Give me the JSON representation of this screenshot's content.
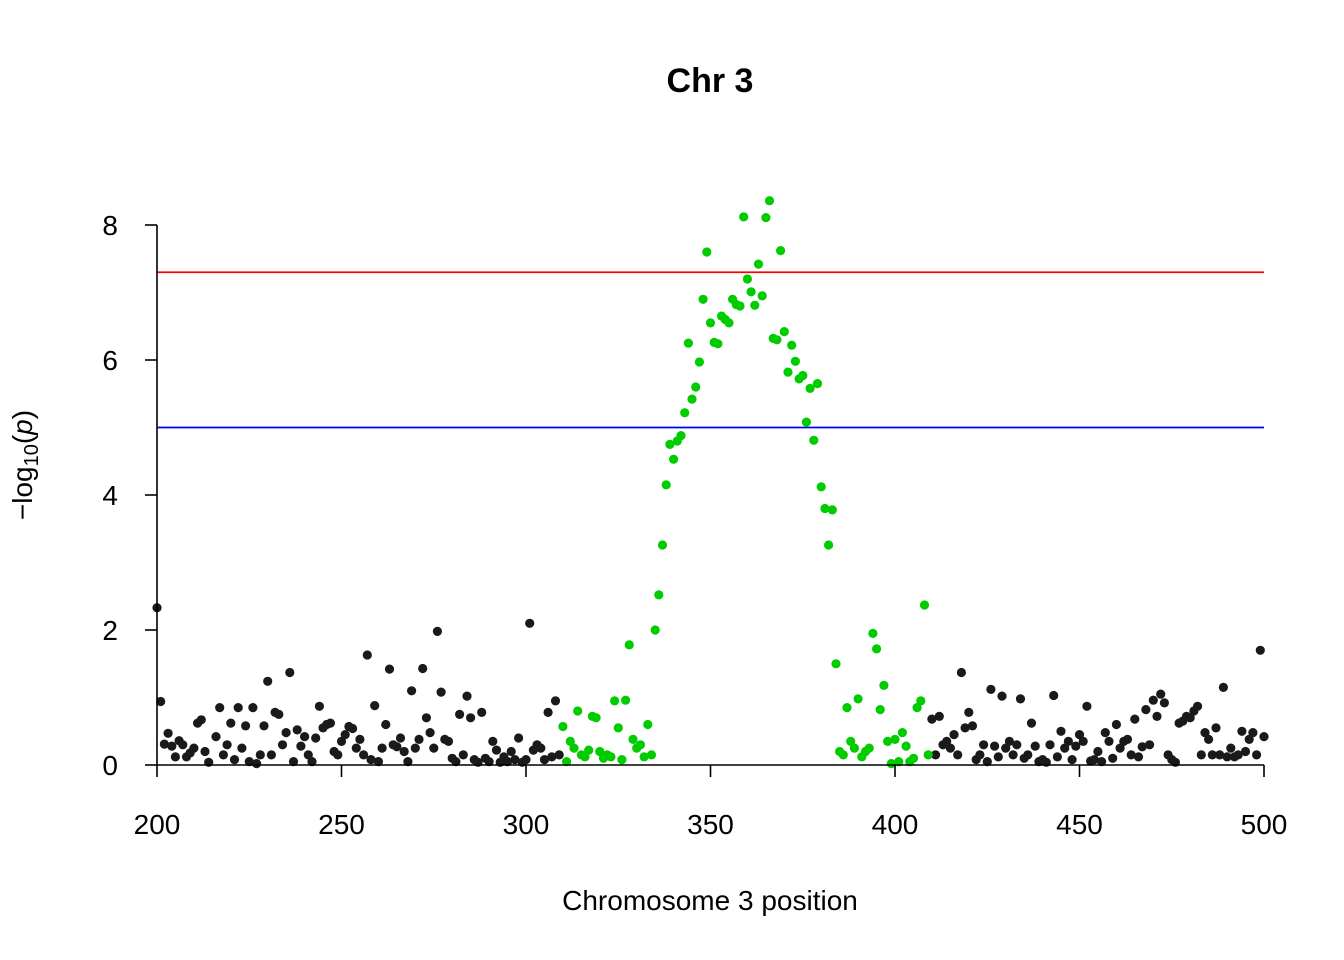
{
  "chart_data": {
    "type": "scatter",
    "title": "Chr 3",
    "xlabel": "Chromosome 3 position",
    "ylabel": {
      "prefix": "−log",
      "subscript": "10",
      "open": "(",
      "variable": "p",
      "close": ")"
    },
    "xlim": [
      200,
      500
    ],
    "ylim": [
      0,
      8.5
    ],
    "xticks": [
      200,
      250,
      300,
      350,
      400,
      450,
      500
    ],
    "yticks": [
      0,
      2,
      4,
      6,
      8
    ],
    "grid": false,
    "legend": "none",
    "colors": {
      "background_points": "#1a1a1a",
      "highlight_points": "#00cc00",
      "genome_wide_line": "#ff0000",
      "suggestive_line": "#0000ff"
    },
    "hlines": [
      {
        "y": 7.3,
        "color": "#ff0000"
      },
      {
        "y": 5.0,
        "color": "#0000ff"
      }
    ],
    "series": [
      {
        "color": "#1a1a1a",
        "points": [
          [
            200,
            2.33
          ],
          [
            201,
            0.94
          ],
          [
            202,
            0.31
          ],
          [
            203,
            0.47
          ],
          [
            204,
            0.28
          ],
          [
            205,
            0.12
          ],
          [
            206,
            0.36
          ],
          [
            207,
            0.3
          ],
          [
            208,
            0.12
          ],
          [
            209,
            0.18
          ],
          [
            210,
            0.25
          ],
          [
            211,
            0.62
          ],
          [
            212,
            0.67
          ],
          [
            213,
            0.2
          ],
          [
            214,
            0.04
          ],
          [
            216,
            0.42
          ],
          [
            217,
            0.85
          ],
          [
            218,
            0.15
          ],
          [
            219,
            0.3
          ],
          [
            220,
            0.62
          ],
          [
            221,
            0.08
          ],
          [
            222,
            0.85
          ],
          [
            223,
            0.25
          ],
          [
            224,
            0.58
          ],
          [
            225,
            0.05
          ],
          [
            226,
            0.85
          ],
          [
            227,
            0.02
          ],
          [
            228,
            0.15
          ],
          [
            229,
            0.58
          ],
          [
            230,
            1.24
          ],
          [
            231,
            0.15
          ],
          [
            232,
            0.78
          ],
          [
            233,
            0.75
          ],
          [
            234,
            0.3
          ],
          [
            235,
            0.48
          ],
          [
            236,
            1.37
          ],
          [
            237,
            0.05
          ],
          [
            238,
            0.52
          ],
          [
            239,
            0.28
          ],
          [
            240,
            0.42
          ],
          [
            241,
            0.15
          ],
          [
            242,
            0.05
          ],
          [
            243,
            0.4
          ],
          [
            244,
            0.87
          ],
          [
            245,
            0.55
          ],
          [
            246,
            0.6
          ],
          [
            247,
            0.62
          ],
          [
            248,
            0.2
          ],
          [
            249,
            0.15
          ],
          [
            250,
            0.35
          ],
          [
            251,
            0.45
          ],
          [
            252,
            0.57
          ],
          [
            253,
            0.54
          ],
          [
            254,
            0.25
          ],
          [
            255,
            0.38
          ],
          [
            256,
            0.15
          ],
          [
            257,
            1.63
          ],
          [
            258,
            0.08
          ],
          [
            259,
            0.88
          ],
          [
            260,
            0.05
          ],
          [
            261,
            0.25
          ],
          [
            262,
            0.6
          ],
          [
            263,
            1.42
          ],
          [
            264,
            0.3
          ],
          [
            265,
            0.27
          ],
          [
            266,
            0.4
          ],
          [
            267,
            0.2
          ],
          [
            268,
            0.05
          ],
          [
            269,
            1.1
          ],
          [
            270,
            0.25
          ],
          [
            271,
            0.38
          ],
          [
            272,
            1.43
          ],
          [
            273,
            0.7
          ],
          [
            274,
            0.48
          ],
          [
            275,
            0.25
          ],
          [
            276,
            1.98
          ],
          [
            277,
            1.08
          ],
          [
            278,
            0.38
          ],
          [
            279,
            0.35
          ],
          [
            280,
            0.1
          ],
          [
            281,
            0.05
          ],
          [
            282,
            0.75
          ],
          [
            283,
            0.15
          ],
          [
            284,
            1.02
          ],
          [
            285,
            0.7
          ],
          [
            286,
            0.08
          ],
          [
            287,
            0.04
          ],
          [
            288,
            0.78
          ],
          [
            289,
            0.1
          ],
          [
            290,
            0.05
          ],
          [
            291,
            0.35
          ],
          [
            292,
            0.22
          ],
          [
            293,
            0.04
          ],
          [
            294,
            0.12
          ],
          [
            295,
            0.05
          ],
          [
            296,
            0.2
          ],
          [
            297,
            0.08
          ],
          [
            298,
            0.4
          ],
          [
            299,
            0.04
          ],
          [
            300,
            0.08
          ],
          [
            301,
            2.1
          ],
          [
            302,
            0.22
          ],
          [
            303,
            0.3
          ],
          [
            304,
            0.25
          ],
          [
            305,
            0.08
          ],
          [
            306,
            0.78
          ],
          [
            307,
            0.12
          ],
          [
            308,
            0.95
          ],
          [
            309,
            0.15
          ],
          [
            410,
            0.68
          ],
          [
            411,
            0.15
          ],
          [
            412,
            0.72
          ],
          [
            413,
            0.3
          ],
          [
            414,
            0.35
          ],
          [
            415,
            0.25
          ],
          [
            416,
            0.45
          ],
          [
            417,
            0.15
          ],
          [
            418,
            1.37
          ],
          [
            419,
            0.55
          ],
          [
            420,
            0.78
          ],
          [
            421,
            0.58
          ],
          [
            422,
            0.08
          ],
          [
            423,
            0.15
          ],
          [
            424,
            0.3
          ],
          [
            425,
            0.05
          ],
          [
            426,
            1.12
          ],
          [
            427,
            0.28
          ],
          [
            428,
            0.12
          ],
          [
            429,
            1.02
          ],
          [
            430,
            0.25
          ],
          [
            431,
            0.35
          ],
          [
            432,
            0.15
          ],
          [
            433,
            0.3
          ],
          [
            434,
            0.98
          ],
          [
            435,
            0.1
          ],
          [
            436,
            0.15
          ],
          [
            437,
            0.62
          ],
          [
            438,
            0.28
          ],
          [
            439,
            0.05
          ],
          [
            440,
            0.08
          ],
          [
            441,
            0.04
          ],
          [
            442,
            0.3
          ],
          [
            443,
            1.03
          ],
          [
            444,
            0.12
          ],
          [
            445,
            0.5
          ],
          [
            446,
            0.25
          ],
          [
            447,
            0.35
          ],
          [
            448,
            0.08
          ],
          [
            449,
            0.28
          ],
          [
            450,
            0.45
          ],
          [
            451,
            0.35
          ],
          [
            452,
            0.87
          ],
          [
            453,
            0.06
          ],
          [
            454,
            0.08
          ],
          [
            455,
            0.2
          ],
          [
            456,
            0.05
          ],
          [
            457,
            0.48
          ],
          [
            458,
            0.35
          ],
          [
            459,
            0.1
          ],
          [
            460,
            0.6
          ],
          [
            461,
            0.25
          ],
          [
            462,
            0.35
          ],
          [
            463,
            0.38
          ],
          [
            464,
            0.15
          ],
          [
            465,
            0.68
          ],
          [
            466,
            0.12
          ],
          [
            467,
            0.27
          ],
          [
            468,
            0.82
          ],
          [
            469,
            0.3
          ],
          [
            470,
            0.96
          ],
          [
            471,
            0.72
          ],
          [
            472,
            1.05
          ],
          [
            473,
            0.92
          ],
          [
            474,
            0.15
          ],
          [
            475,
            0.08
          ],
          [
            476,
            0.04
          ],
          [
            477,
            0.62
          ],
          [
            478,
            0.65
          ],
          [
            479,
            0.72
          ],
          [
            480,
            0.7
          ],
          [
            481,
            0.8
          ],
          [
            482,
            0.87
          ],
          [
            483,
            0.15
          ],
          [
            484,
            0.48
          ],
          [
            485,
            0.38
          ],
          [
            486,
            0.15
          ],
          [
            487,
            0.55
          ],
          [
            488,
            0.15
          ],
          [
            489,
            1.15
          ],
          [
            490,
            0.12
          ],
          [
            491,
            0.25
          ],
          [
            492,
            0.12
          ],
          [
            493,
            0.15
          ],
          [
            494,
            0.5
          ],
          [
            495,
            0.2
          ],
          [
            496,
            0.38
          ],
          [
            497,
            0.48
          ],
          [
            498,
            0.15
          ],
          [
            499,
            1.7
          ],
          [
            500,
            0.42
          ]
        ]
      },
      {
        "color": "#00cc00",
        "points": [
          [
            310,
            0.57
          ],
          [
            311,
            0.05
          ],
          [
            312,
            0.35
          ],
          [
            313,
            0.25
          ],
          [
            314,
            0.8
          ],
          [
            315,
            0.15
          ],
          [
            316,
            0.12
          ],
          [
            317,
            0.22
          ],
          [
            318,
            0.72
          ],
          [
            319,
            0.7
          ],
          [
            320,
            0.2
          ],
          [
            321,
            0.1
          ],
          [
            322,
            0.15
          ],
          [
            323,
            0.12
          ],
          [
            324,
            0.95
          ],
          [
            325,
            0.55
          ],
          [
            326,
            0.08
          ],
          [
            327,
            0.96
          ],
          [
            328,
            1.78
          ],
          [
            329,
            0.38
          ],
          [
            330,
            0.25
          ],
          [
            331,
            0.3
          ],
          [
            332,
            0.12
          ],
          [
            333,
            0.6
          ],
          [
            334,
            0.15
          ],
          [
            335,
            2.0
          ],
          [
            336,
            2.52
          ],
          [
            337,
            3.26
          ],
          [
            338,
            4.15
          ],
          [
            339,
            4.75
          ],
          [
            340,
            4.53
          ],
          [
            341,
            4.8
          ],
          [
            342,
            4.88
          ],
          [
            343,
            5.22
          ],
          [
            344,
            6.25
          ],
          [
            345,
            5.42
          ],
          [
            346,
            5.6
          ],
          [
            347,
            5.97
          ],
          [
            348,
            6.9
          ],
          [
            349,
            7.6
          ],
          [
            350,
            6.55
          ],
          [
            351,
            6.26
          ],
          [
            352,
            6.24
          ],
          [
            353,
            6.65
          ],
          [
            354,
            6.6
          ],
          [
            355,
            6.55
          ],
          [
            356,
            6.9
          ],
          [
            357,
            6.82
          ],
          [
            358,
            6.8
          ],
          [
            359,
            8.12
          ],
          [
            360,
            7.2
          ],
          [
            361,
            7.01
          ],
          [
            362,
            6.81
          ],
          [
            363,
            7.42
          ],
          [
            364,
            6.95
          ],
          [
            365,
            8.11
          ],
          [
            366,
            8.36
          ],
          [
            367,
            6.32
          ],
          [
            368,
            6.3
          ],
          [
            369,
            7.62
          ],
          [
            370,
            6.42
          ],
          [
            371,
            5.82
          ],
          [
            372,
            6.22
          ],
          [
            373,
            5.98
          ],
          [
            374,
            5.72
          ],
          [
            375,
            5.77
          ],
          [
            376,
            5.08
          ],
          [
            377,
            5.58
          ],
          [
            378,
            4.81
          ],
          [
            379,
            5.65
          ],
          [
            380,
            4.12
          ],
          [
            381,
            3.8
          ],
          [
            382,
            3.26
          ],
          [
            383,
            3.78
          ],
          [
            384,
            1.5
          ],
          [
            385,
            0.2
          ],
          [
            386,
            0.15
          ],
          [
            387,
            0.85
          ],
          [
            388,
            0.35
          ],
          [
            389,
            0.25
          ],
          [
            390,
            0.98
          ],
          [
            391,
            0.12
          ],
          [
            392,
            0.2
          ],
          [
            393,
            0.25
          ],
          [
            394,
            1.95
          ],
          [
            395,
            1.72
          ],
          [
            396,
            0.82
          ],
          [
            397,
            1.18
          ],
          [
            398,
            0.35
          ],
          [
            399,
            0.02
          ],
          [
            400,
            0.38
          ],
          [
            401,
            0.05
          ],
          [
            402,
            0.48
          ],
          [
            403,
            0.28
          ],
          [
            404,
            0.05
          ],
          [
            405,
            0.1
          ],
          [
            406,
            0.85
          ],
          [
            407,
            0.95
          ],
          [
            408,
            2.37
          ],
          [
            409,
            0.15
          ]
        ]
      }
    ]
  }
}
